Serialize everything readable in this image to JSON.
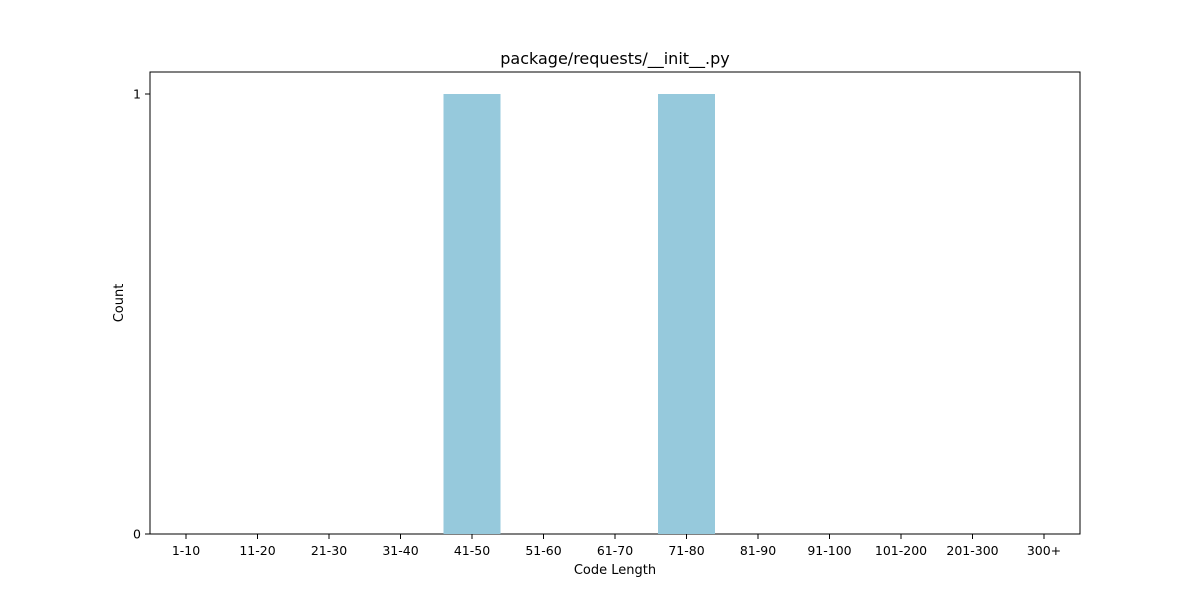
{
  "chart_data": {
    "type": "bar",
    "title": "package/requests/__init__.py",
    "xlabel": "Code Length",
    "ylabel": "Count",
    "categories": [
      "1-10",
      "11-20",
      "21-30",
      "31-40",
      "41-50",
      "51-60",
      "61-70",
      "71-80",
      "81-90",
      "91-100",
      "101-200",
      "201-300",
      "300+"
    ],
    "values": [
      0,
      0,
      0,
      0,
      1,
      0,
      0,
      1,
      0,
      0,
      0,
      0,
      0
    ],
    "ylim": [
      0,
      1.05
    ],
    "yticks": [
      0,
      1
    ],
    "grid": false,
    "bar_color": "#96c9dc"
  }
}
